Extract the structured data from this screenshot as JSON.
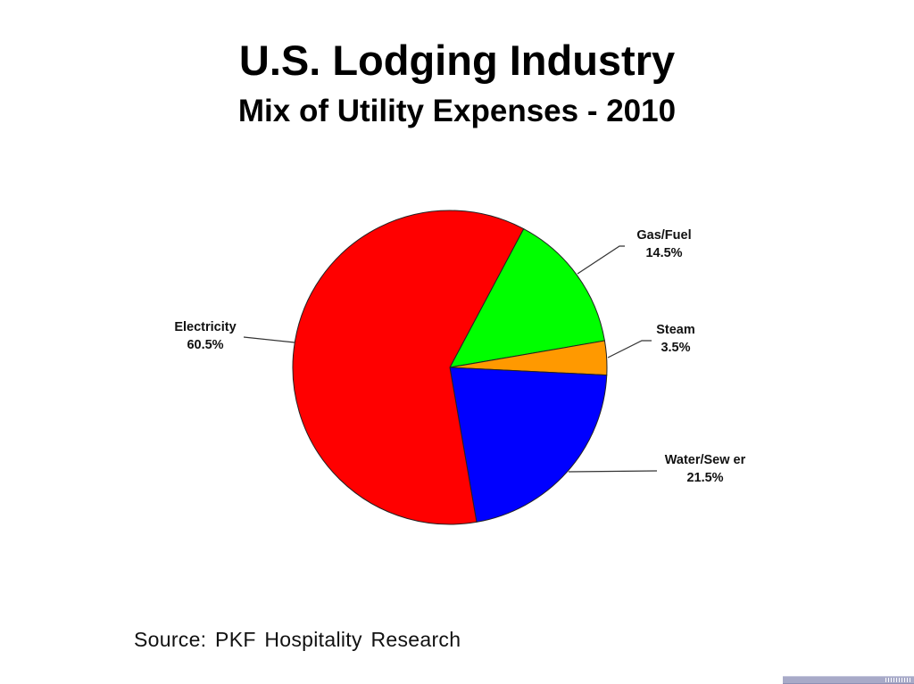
{
  "header": {
    "title": "U.S. Lodging Industry",
    "subtitle": "Mix of Utility Expenses - 2010"
  },
  "footer": {
    "source": "Source: PKF Hospitality Research"
  },
  "labels": {
    "electricity": {
      "name": "Electricity",
      "pct": "60.5%"
    },
    "gas_fuel": {
      "name": "Gas/Fuel",
      "pct": "14.5%"
    },
    "steam": {
      "name": "Steam",
      "pct": "3.5%"
    },
    "water_sewer": {
      "name": "Water/Sew er",
      "pct": "21.5%"
    }
  },
  "colors": {
    "electricity": "#ff0000",
    "gas_fuel": "#00ff00",
    "steam": "#ff9900",
    "water_sewer": "#0000ff"
  },
  "chart_data": {
    "type": "pie",
    "title": "U.S. Lodging Industry",
    "subtitle": "Mix of Utility Expenses - 2010",
    "categories": [
      "Electricity",
      "Gas/Fuel",
      "Steam",
      "Water/Sewer"
    ],
    "values": [
      60.5,
      14.5,
      3.5,
      21.5
    ],
    "unit": "%",
    "colors": [
      "#ff0000",
      "#00ff00",
      "#ff9900",
      "#0000ff"
    ],
    "data_labels": [
      "60.5%",
      "14.5%",
      "3.5%",
      "21.5%"
    ],
    "legend": "none (labels with leader lines)",
    "source": "Source: PKF Hospitality Research"
  }
}
